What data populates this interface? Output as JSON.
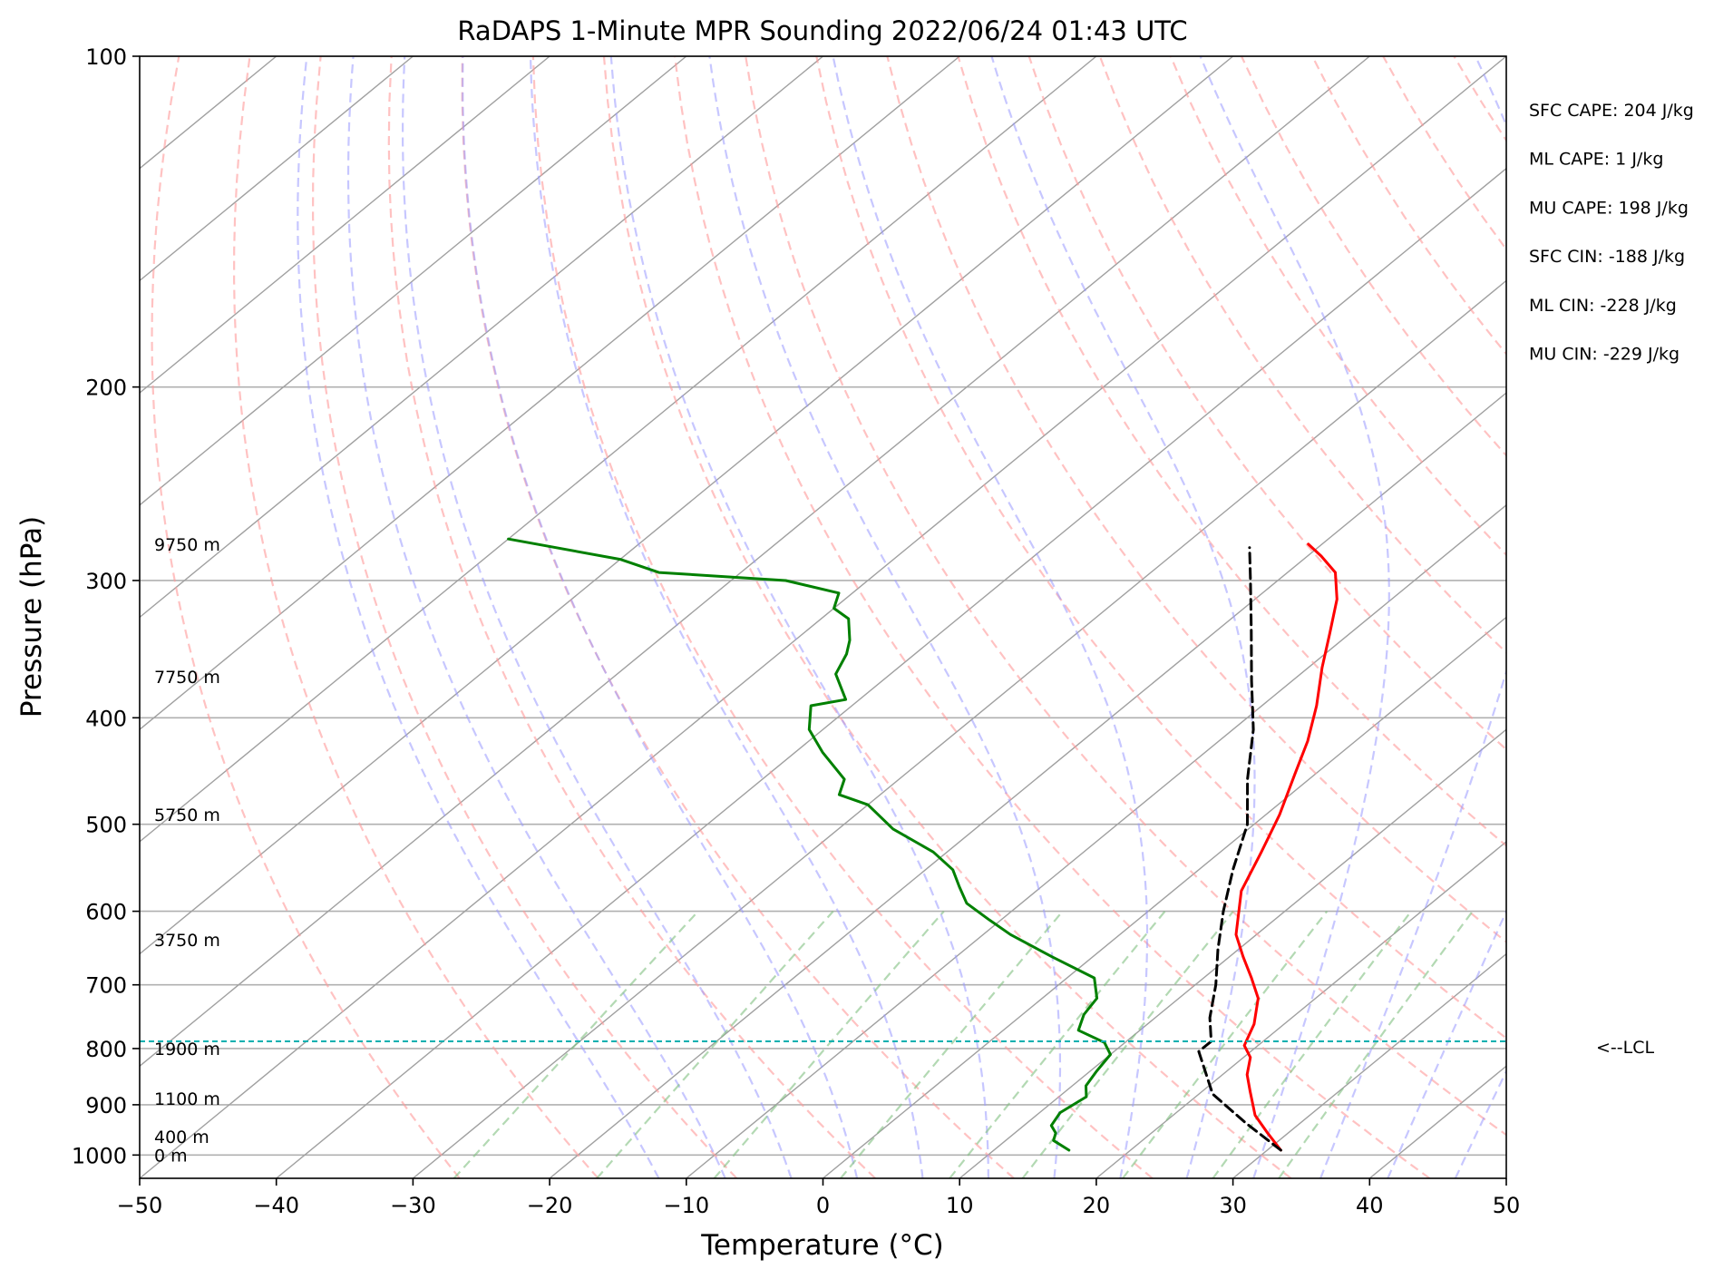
{
  "chart_data": {
    "type": "line",
    "subtype": "skew-t log-p sounding",
    "title": "RaDAPS 1-Minute MPR Sounding 2022/06/24 01:43 UTC",
    "xlabel": "Temperature (°C)",
    "ylabel": "Pressure (hPa)",
    "xlim": [
      -50,
      50
    ],
    "ylim": [
      1050,
      100
    ],
    "y_scale": "log",
    "x_ticks": [
      -50,
      -40,
      -30,
      -20,
      -10,
      0,
      10,
      20,
      30,
      40,
      50
    ],
    "y_ticks": [
      1000,
      900,
      800,
      700,
      600,
      500,
      400,
      300,
      200,
      100
    ],
    "grid": true,
    "skew_note": "isotherms skewed to the right with height",
    "series": [
      {
        "name": "",
        "role": "temperature",
        "color": "#ff0000",
        "points": [
          [
            31.0,
            990
          ],
          [
            28.5,
            955
          ],
          [
            26.0,
            920
          ],
          [
            23.5,
            875
          ],
          [
            21.8,
            845
          ],
          [
            20.5,
            815
          ],
          [
            19.0,
            795
          ],
          [
            17.8,
            760
          ],
          [
            15.8,
            720
          ],
          [
            13.5,
            690
          ],
          [
            11.0,
            660
          ],
          [
            8.5,
            630
          ],
          [
            5.0,
            575
          ],
          [
            3.0,
            530
          ],
          [
            1.0,
            490
          ],
          [
            -1.5,
            450
          ],
          [
            -3.5,
            420
          ],
          [
            -6.0,
            390
          ],
          [
            -9.0,
            360
          ],
          [
            -11.5,
            335
          ],
          [
            -14.0,
            312
          ],
          [
            -16.5,
            295
          ],
          [
            -19.0,
            285
          ],
          [
            -21.0,
            278
          ]
        ]
      },
      {
        "name": "",
        "role": "dewpoint",
        "color": "#008000",
        "points": [
          [
            15.5,
            990
          ],
          [
            13.5,
            970
          ],
          [
            13.0,
            955
          ],
          [
            12.0,
            940
          ],
          [
            11.5,
            915
          ],
          [
            12.0,
            885
          ],
          [
            11.0,
            865
          ],
          [
            10.5,
            840
          ],
          [
            10.0,
            810
          ],
          [
            8.5,
            790
          ],
          [
            5.5,
            770
          ],
          [
            4.5,
            745
          ],
          [
            4.0,
            720
          ],
          [
            2.0,
            690
          ],
          [
            -3.0,
            660
          ],
          [
            -8.0,
            630
          ],
          [
            -11.0,
            610
          ],
          [
            -14.0,
            590
          ],
          [
            -16.0,
            570
          ],
          [
            -18.0,
            550
          ],
          [
            -21.0,
            530
          ],
          [
            -26.0,
            505
          ],
          [
            -30.0,
            480
          ],
          [
            -33.0,
            470
          ],
          [
            -34.0,
            455
          ],
          [
            -38.0,
            430
          ],
          [
            -41.0,
            410
          ],
          [
            -43.0,
            390
          ],
          [
            -41.0,
            385
          ],
          [
            -44.0,
            365
          ],
          [
            -45.0,
            350
          ],
          [
            -46.0,
            340
          ],
          [
            -48.0,
            325
          ],
          [
            -50.0,
            318
          ],
          [
            -51.0,
            308
          ],
          [
            -56.0,
            300
          ],
          [
            -66.0,
            295
          ],
          [
            -70.0,
            287
          ],
          [
            -80.0,
            275
          ]
        ]
      },
      {
        "name": "",
        "role": "parcel",
        "color": "#000000",
        "style": "dashed",
        "points": [
          [
            31.0,
            990
          ],
          [
            26.0,
            935
          ],
          [
            21.0,
            880
          ],
          [
            16.2,
            805
          ],
          [
            16.2,
            788
          ],
          [
            14.0,
            750
          ],
          [
            11.5,
            700
          ],
          [
            8.5,
            650
          ],
          [
            5.5,
            600
          ],
          [
            2.5,
            550
          ],
          [
            -0.5,
            500
          ],
          [
            -4.5,
            455
          ],
          [
            -8.5,
            410
          ],
          [
            -13.0,
            370
          ],
          [
            -17.5,
            333
          ],
          [
            -22.0,
            300
          ],
          [
            -25.0,
            280
          ]
        ]
      }
    ],
    "background_lines": {
      "dry_adiabats_color": "#ff9999",
      "moist_adiabats_color": "#9999ff",
      "mixing_ratio_color": "#80c080",
      "isotherm_color": "#a0a0a0"
    },
    "lcl": {
      "pressure": 788,
      "label": "<--LCL",
      "color": "#00b0b0"
    },
    "height_labels": [
      {
        "text": "9750 m",
        "pressure": 278
      },
      {
        "text": "7750 m",
        "pressure": 367
      },
      {
        "text": "5750 m",
        "pressure": 490
      },
      {
        "text": "3750 m",
        "pressure": 637
      },
      {
        "text": "1900 m",
        "pressure": 800
      },
      {
        "text": "1100 m",
        "pressure": 888
      },
      {
        "text": "400 m",
        "pressure": 962
      },
      {
        "text": "0 m",
        "pressure": 1000
      }
    ],
    "annotations": [
      "SFC CAPE: 204 J/kg",
      "ML CAPE: 1 J/kg",
      "MU CAPE: 198 J/kg",
      "SFC CIN: -188 J/kg",
      "ML CIN: -228 J/kg",
      "MU CIN: -229 J/kg"
    ]
  }
}
